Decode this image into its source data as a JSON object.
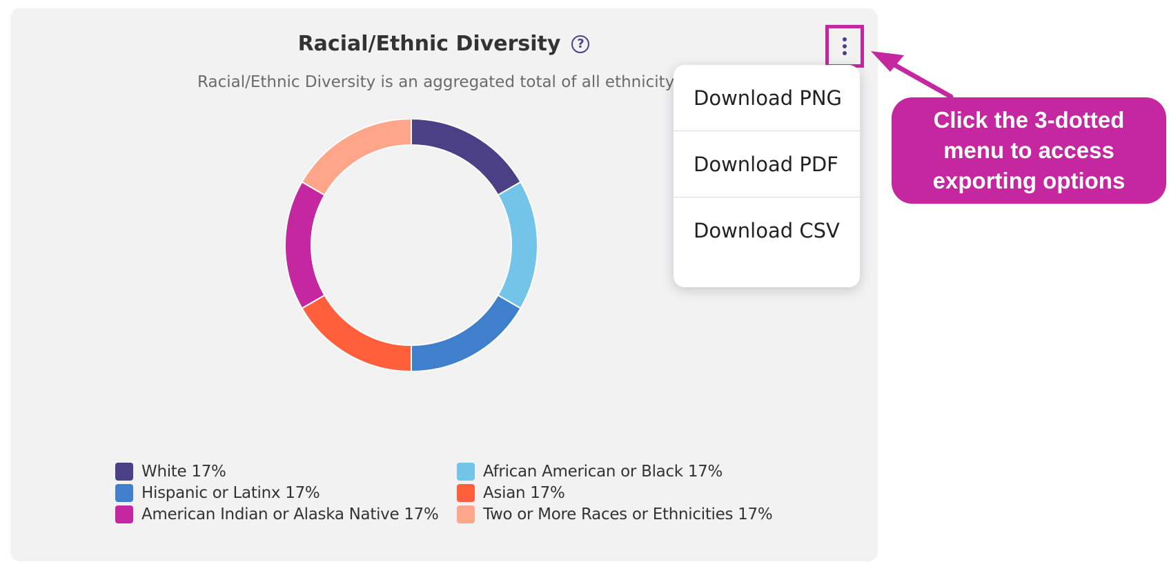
{
  "card": {
    "title": "Racial/Ethnic Diversity",
    "help_glyph": "?",
    "subtitle": "Racial/Ethnic Diversity is an aggregated total of all ethnicity data"
  },
  "chart_data": {
    "type": "pie",
    "donut": true,
    "categories": [
      "White",
      "African American or Black",
      "Hispanic or Latinx",
      "Asian",
      "American Indian or Alaska Native",
      "Two or More Races or Ethnicities"
    ],
    "values": [
      17,
      17,
      17,
      17,
      17,
      17
    ],
    "colors": [
      "#4b4085",
      "#72c5e8",
      "#3f7fcc",
      "#ff5f3a",
      "#c4279f",
      "#ffa58a"
    ],
    "legend_placement": "bottom"
  },
  "legend": [
    {
      "label": "White 17%",
      "color": "#4b4085"
    },
    {
      "label": "African American or Black 17%",
      "color": "#72c5e8"
    },
    {
      "label": "Hispanic or Latinx 17%",
      "color": "#3f7fcc"
    },
    {
      "label": "Asian 17%",
      "color": "#ff5f3a"
    },
    {
      "label": "American Indian or Alaska Native 17%",
      "color": "#c4279f"
    },
    {
      "label": "Two or More Races or Ethnicities 17%",
      "color": "#ffa58a"
    }
  ],
  "kebab_menu": {
    "icon": "kebab-vertical-icon",
    "items": [
      {
        "label": "Download PNG"
      },
      {
        "label": "Download PDF"
      },
      {
        "label": "Download CSV"
      }
    ]
  },
  "callout": {
    "line1": "Click the 3-dotted",
    "line2": "menu to access",
    "line3": "exporting options",
    "color": "#c4279f"
  }
}
